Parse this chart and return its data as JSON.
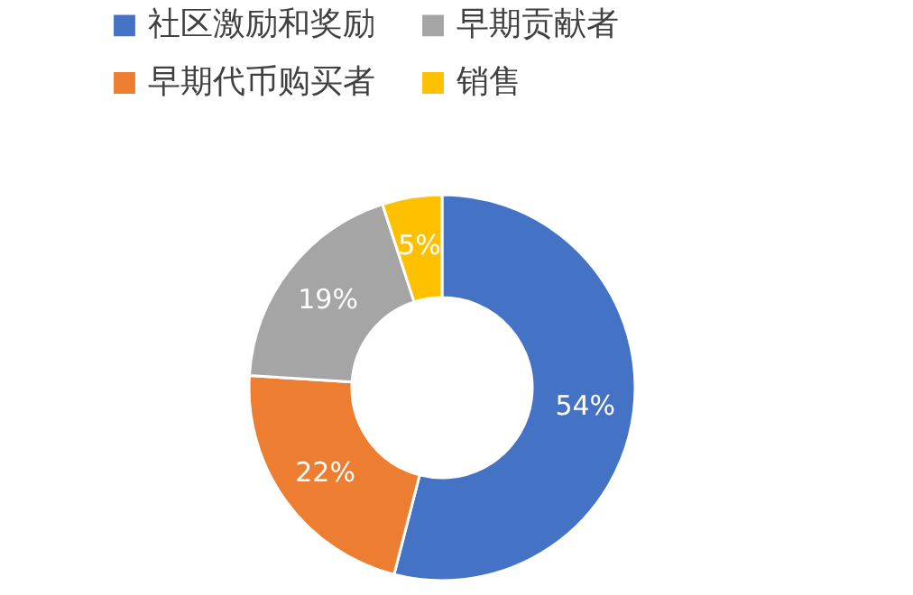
{
  "chart_data": {
    "type": "donut",
    "categories": [
      "社区激励和奖励",
      "早期代币购买者",
      "早期贡献者",
      "销售"
    ],
    "values": [
      54,
      22,
      19,
      5
    ],
    "colors": [
      "#4472c4",
      "#ed7d31",
      "#a5a5a5",
      "#ffc000"
    ],
    "value_labels": [
      "54%",
      "22%",
      "19%",
      "5%"
    ],
    "legend": "top"
  }
}
